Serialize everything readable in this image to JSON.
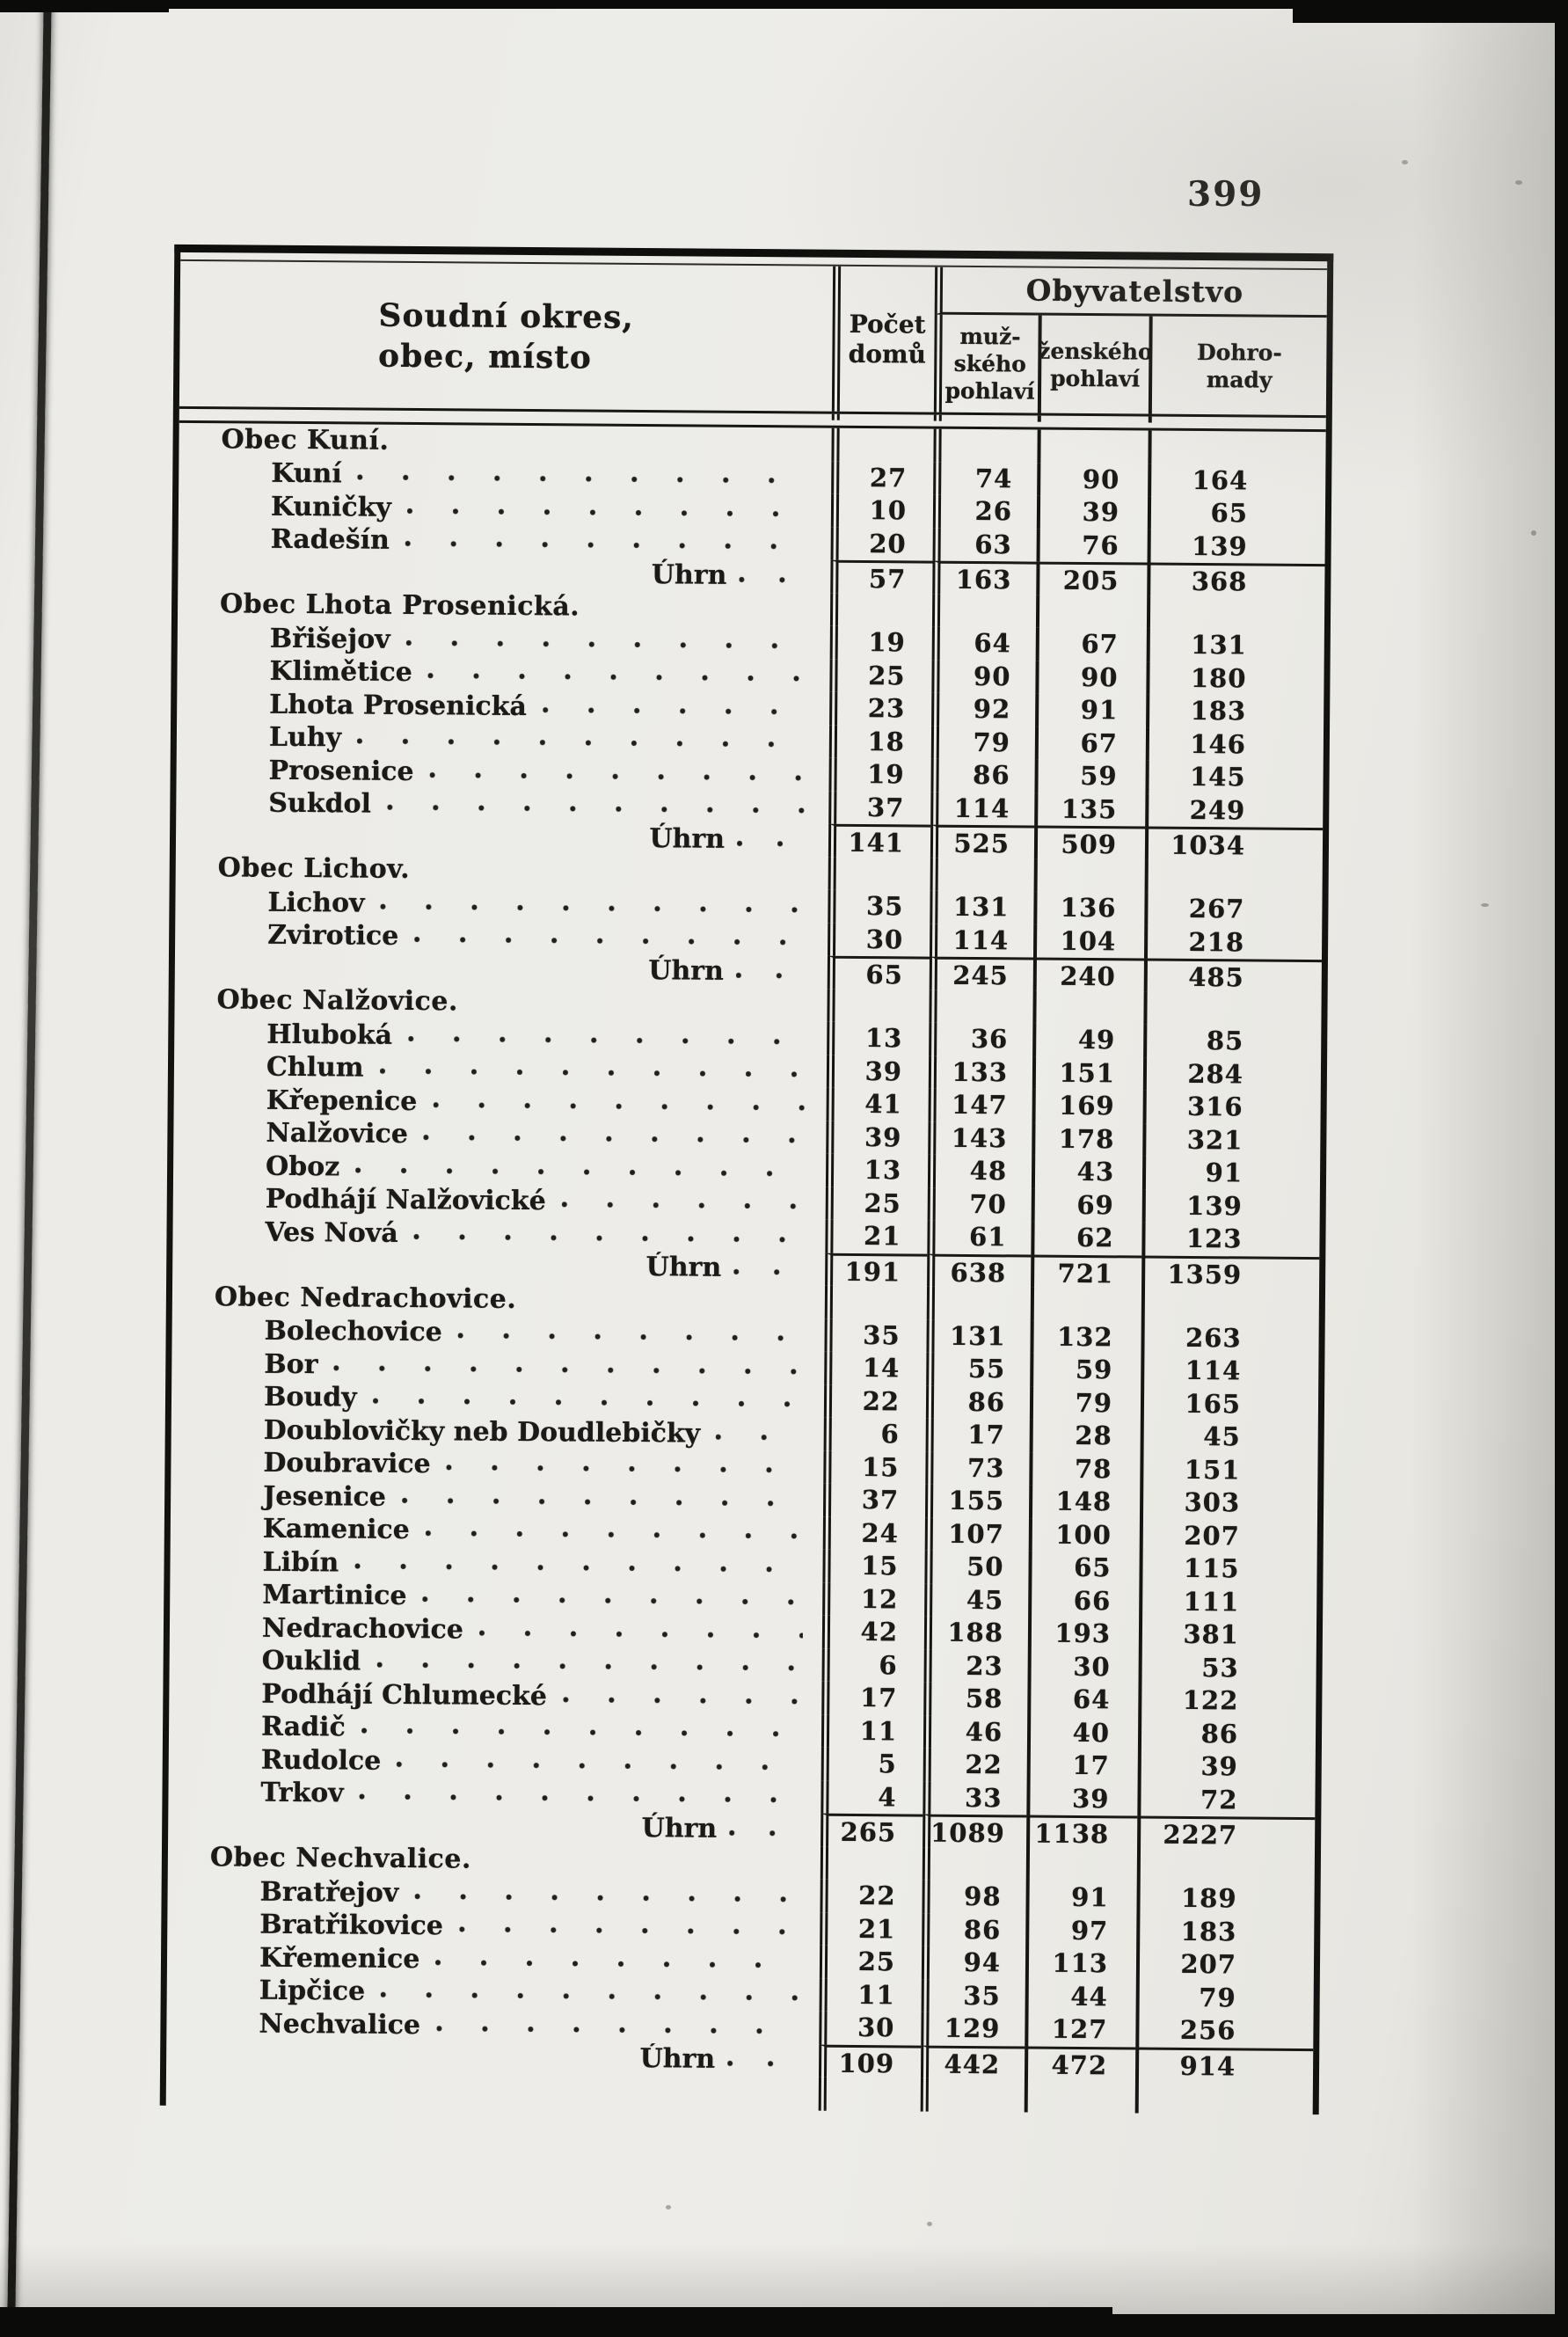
{
  "page": {
    "number": "399"
  },
  "table": {
    "header": {
      "name_col": "Soudní okres,\nobec, místo",
      "houses_col": "Počet\ndomů",
      "population_group": "Obyvatelstvo",
      "male_col": "muž-\nského\npohlaví",
      "female_col": "ženského\npohlaví",
      "total_col": "Dohro-\nmady"
    },
    "uhrn_label": "Úhrn",
    "rows": [
      {
        "type": "section",
        "label": "Obec Kuní."
      },
      {
        "type": "place",
        "label": "Kuní",
        "values": [
          "27",
          "74",
          "90",
          "164"
        ]
      },
      {
        "type": "place",
        "label": "Kuničky",
        "values": [
          "10",
          "26",
          "39",
          "65"
        ]
      },
      {
        "type": "place",
        "label": "Radešín",
        "values": [
          "20",
          "63",
          "76",
          "139"
        ]
      },
      {
        "type": "uhrn",
        "values": [
          "57",
          "163",
          "205",
          "368"
        ]
      },
      {
        "type": "section",
        "label": "Obec Lhota Prosenická."
      },
      {
        "type": "place",
        "label": "Břišejov",
        "values": [
          "19",
          "64",
          "67",
          "131"
        ]
      },
      {
        "type": "place",
        "label": "Klimětice",
        "values": [
          "25",
          "90",
          "90",
          "180"
        ]
      },
      {
        "type": "place",
        "label": "Lhota Prosenická",
        "values": [
          "23",
          "92",
          "91",
          "183"
        ]
      },
      {
        "type": "place",
        "label": "Luhy",
        "values": [
          "18",
          "79",
          "67",
          "146"
        ]
      },
      {
        "type": "place",
        "label": "Prosenice",
        "values": [
          "19",
          "86",
          "59",
          "145"
        ]
      },
      {
        "type": "place",
        "label": "Sukdol",
        "values": [
          "37",
          "114",
          "135",
          "249"
        ]
      },
      {
        "type": "uhrn",
        "values": [
          "141",
          "525",
          "509",
          "1034"
        ]
      },
      {
        "type": "section",
        "label": "Obec Lichov."
      },
      {
        "type": "place",
        "label": "Lichov",
        "values": [
          "35",
          "131",
          "136",
          "267"
        ]
      },
      {
        "type": "place",
        "label": "Zvirotice",
        "values": [
          "30",
          "114",
          "104",
          "218"
        ]
      },
      {
        "type": "uhrn",
        "values": [
          "65",
          "245",
          "240",
          "485"
        ]
      },
      {
        "type": "section",
        "label": "Obec Nalžovice."
      },
      {
        "type": "place",
        "label": "Hluboká",
        "values": [
          "13",
          "36",
          "49",
          "85"
        ]
      },
      {
        "type": "place",
        "label": "Chlum",
        "values": [
          "39",
          "133",
          "151",
          "284"
        ]
      },
      {
        "type": "place",
        "label": "Křepenice",
        "values": [
          "41",
          "147",
          "169",
          "316"
        ]
      },
      {
        "type": "place",
        "label": "Nalžovice",
        "values": [
          "39",
          "143",
          "178",
          "321"
        ]
      },
      {
        "type": "place",
        "label": "Oboz",
        "values": [
          "13",
          "48",
          "43",
          "91"
        ]
      },
      {
        "type": "place",
        "label": "Podhájí Nalžovické",
        "values": [
          "25",
          "70",
          "69",
          "139"
        ]
      },
      {
        "type": "place",
        "label": "Ves Nová",
        "values": [
          "21",
          "61",
          "62",
          "123"
        ]
      },
      {
        "type": "uhrn",
        "values": [
          "191",
          "638",
          "721",
          "1359"
        ]
      },
      {
        "type": "section",
        "label": "Obec Nedrachovice."
      },
      {
        "type": "place",
        "label": "Bolechovice",
        "values": [
          "35",
          "131",
          "132",
          "263"
        ]
      },
      {
        "type": "place",
        "label": "Bor",
        "values": [
          "14",
          "55",
          "59",
          "114"
        ]
      },
      {
        "type": "place",
        "label": "Boudy",
        "values": [
          "22",
          "86",
          "79",
          "165"
        ]
      },
      {
        "type": "place",
        "label": "Doublovičky neb Doudlebičky",
        "values": [
          "6",
          "17",
          "28",
          "45"
        ]
      },
      {
        "type": "place",
        "label": "Doubravice",
        "values": [
          "15",
          "73",
          "78",
          "151"
        ]
      },
      {
        "type": "place",
        "label": "Jesenice",
        "values": [
          "37",
          "155",
          "148",
          "303"
        ]
      },
      {
        "type": "place",
        "label": "Kamenice",
        "values": [
          "24",
          "107",
          "100",
          "207"
        ]
      },
      {
        "type": "place",
        "label": "Libín",
        "values": [
          "15",
          "50",
          "65",
          "115"
        ]
      },
      {
        "type": "place",
        "label": "Martinice",
        "values": [
          "12",
          "45",
          "66",
          "111"
        ]
      },
      {
        "type": "place",
        "label": "Nedrachovice",
        "values": [
          "42",
          "188",
          "193",
          "381"
        ]
      },
      {
        "type": "place",
        "label": "Ouklid",
        "values": [
          "6",
          "23",
          "30",
          "53"
        ]
      },
      {
        "type": "place",
        "label": "Podhájí Chlumecké",
        "values": [
          "17",
          "58",
          "64",
          "122"
        ]
      },
      {
        "type": "place",
        "label": "Radič",
        "values": [
          "11",
          "46",
          "40",
          "86"
        ]
      },
      {
        "type": "place",
        "label": "Rudolce",
        "values": [
          "5",
          "22",
          "17",
          "39"
        ]
      },
      {
        "type": "place",
        "label": "Trkov",
        "values": [
          "4",
          "33",
          "39",
          "72"
        ]
      },
      {
        "type": "uhrn",
        "values": [
          "265",
          "1089",
          "1138",
          "2227"
        ]
      },
      {
        "type": "section",
        "label": "Obec Nechvalice."
      },
      {
        "type": "place",
        "label": "Bratřejov",
        "values": [
          "22",
          "98",
          "91",
          "189"
        ]
      },
      {
        "type": "place",
        "label": "Bratřikovice",
        "values": [
          "21",
          "86",
          "97",
          "183"
        ]
      },
      {
        "type": "place",
        "label": "Křemenice",
        "values": [
          "25",
          "94",
          "113",
          "207"
        ]
      },
      {
        "type": "place",
        "label": "Lipčice",
        "values": [
          "11",
          "35",
          "44",
          "79"
        ]
      },
      {
        "type": "place",
        "label": "Nechvalice",
        "values": [
          "30",
          "129",
          "127",
          "256"
        ]
      },
      {
        "type": "uhrn",
        "values": [
          "109",
          "442",
          "472",
          "914"
        ]
      }
    ]
  }
}
